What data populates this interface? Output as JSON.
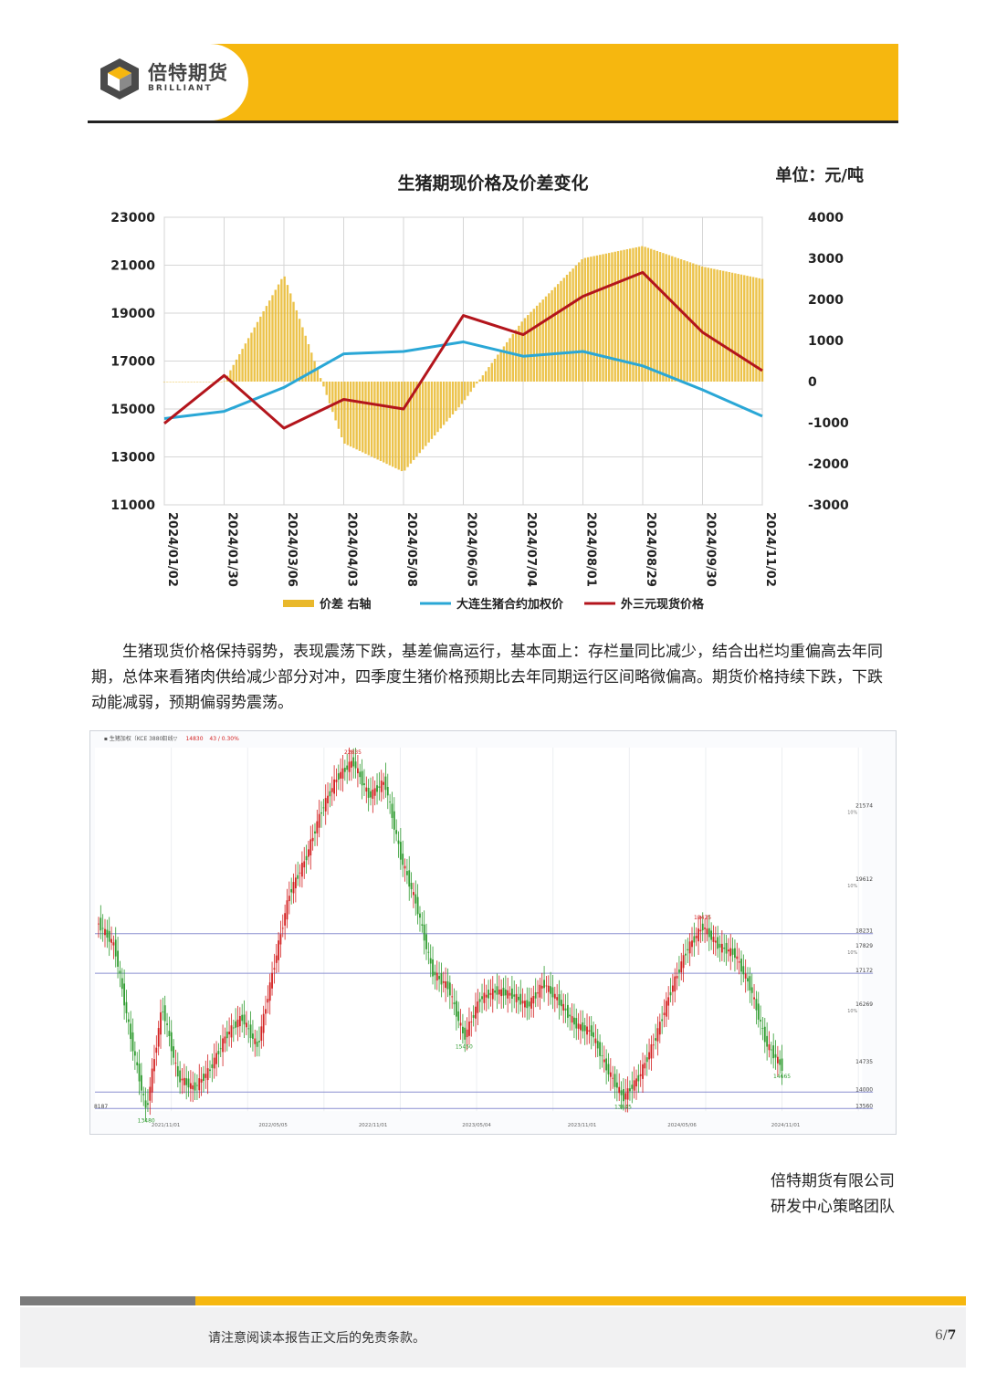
{
  "header": {
    "logo_cn": "倍特期货",
    "logo_en": "BRILLIANT",
    "brand_color": "#f6b70f"
  },
  "chart_data": [
    {
      "type": "line",
      "title": "生猪期现价格及价差变化",
      "unit_label": "单位：元/吨",
      "categories": [
        "2024/01/02",
        "2024/01/30",
        "2024/03/06",
        "2024/04/03",
        "2024/05/08",
        "2024/06/05",
        "2024/07/04",
        "2024/08/01",
        "2024/08/29",
        "2024/09/30",
        "2024/11/02"
      ],
      "ylim": [
        11000,
        23000
      ],
      "y_ticks": [
        "23000",
        "21000",
        "19000",
        "17000",
        "15000",
        "13000",
        "11000"
      ],
      "y2lim": [
        -3000,
        4000
      ],
      "y2_ticks": [
        "4000",
        "3000",
        "2000",
        "1000",
        "0",
        "-1000",
        "-2000",
        "-3000"
      ],
      "grid": true,
      "legend_position": "bottom",
      "series": [
        {
          "name": "价差 右轴",
          "type": "bar",
          "axis": "right",
          "color": "#e9b82c",
          "values": [
            0,
            0,
            2600,
            -1500,
            -2200,
            -500,
            1500,
            3000,
            3300,
            2800,
            2500
          ]
        },
        {
          "name": "大连生猪合约加权价",
          "type": "line",
          "axis": "left",
          "color": "#2aa7d6",
          "values": [
            14600,
            14900,
            15900,
            17300,
            17400,
            17800,
            17200,
            17400,
            16800,
            15800,
            14700
          ]
        },
        {
          "name": "外三元现货价格",
          "type": "line",
          "axis": "left",
          "color": "#b3151c",
          "values": [
            14400,
            16400,
            14200,
            15400,
            15000,
            18900,
            18100,
            19700,
            20700,
            18200,
            16600
          ]
        }
      ]
    },
    {
      "type": "line",
      "header": [
        "▪ 生猪加权（KCE 3880）",
        "日线▽",
        "14830",
        "43 / 0.30%"
      ],
      "x_ticks": [
        "2021/11/01",
        "2022/05/05",
        "2022/11/01",
        "2023/05/04",
        "2023/11/01",
        "2024/05/06",
        "2024/11/01"
      ],
      "price_levels": [
        {
          "label": "21574",
          "sub": "10%"
        },
        {
          "label": "19612",
          "sub": "10%"
        },
        {
          "label": "18231"
        },
        {
          "label": "17829",
          "sub": "10%"
        },
        {
          "label": "17172"
        },
        {
          "label": "16269",
          "sub": "10%"
        },
        {
          "label": "14735"
        },
        {
          "label": "14000"
        },
        {
          "label": "13560"
        }
      ],
      "points": [
        {
          "label": "13480",
          "color": "#2e9b2e"
        },
        {
          "label": "22835",
          "color": "#d32020"
        },
        {
          "label": "15450",
          "color": "#2e9b2e"
        },
        {
          "label": "13845",
          "color": "#2e9b2e"
        },
        {
          "label": "18425",
          "color": "#d32020"
        },
        {
          "label": "14665",
          "color": "#2e9b2e"
        }
      ],
      "corner_label": "8187",
      "series": [
        {
          "name": "",
          "values": [
            18500,
            17900,
            15500,
            13480,
            16300,
            14400,
            14100,
            14600,
            15500,
            16000,
            15200,
            17300,
            19300,
            20200,
            21500,
            22400,
            22835,
            21900,
            22300,
            20300,
            19000,
            17200,
            16800,
            15450,
            16500,
            16700,
            16600,
            16300,
            16900,
            16400,
            15800,
            15600,
            14600,
            13845,
            14400,
            15400,
            16700,
            17800,
            18425,
            17900,
            17700,
            16800,
            15300,
            14665
          ]
        }
      ]
    }
  ],
  "paragraph": "生猪现货价格保持弱势，表现震荡下跌，基差偏高运行，基本面上：存栏量同比减少，结合出栏均重偏高去年同期，总体来看猪肉供给减少部分对冲，四季度生猪价格预期比去年同期运行区间略微偏高。期货价格持续下跌，下跌动能减弱，预期偏弱势震荡。",
  "signature": {
    "company": "倍特期货有限公司",
    "team": "研发中心策略团队"
  },
  "footer": {
    "disclaimer": "请注意阅读本报告正文后的免责条款。",
    "page_current": "6/",
    "page_total": "7"
  }
}
